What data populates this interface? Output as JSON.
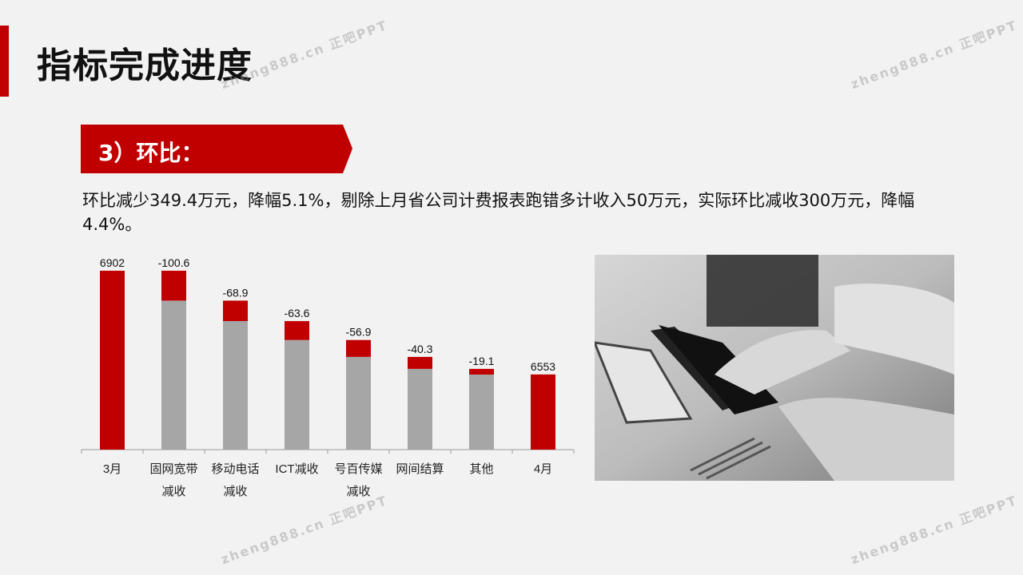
{
  "title": "指标完成进度",
  "section_label": "3）环比：",
  "description": "环比减少349.4万元，降幅5.1%，剔除上月省公司计费报表跑错多计收入50万元，实际环比减收300万元，降幅4.4%。",
  "watermark": "zheng888.cn 正吧PPT",
  "colors": {
    "accent": "#c00000",
    "base": "#a6a6a6",
    "background": "#f2f2f2"
  },
  "chart_data": {
    "type": "bar",
    "subtype": "waterfall",
    "categories": [
      "3月",
      "固网宽带\n减收",
      "移动电话\n减收",
      "ICT减收",
      "号百传媒\n减收",
      "网间结算",
      "其他",
      "4月"
    ],
    "values": [
      6902,
      -100.6,
      -68.9,
      -63.6,
      -56.9,
      -40.3,
      -19.1,
      6553
    ],
    "data_labels": [
      "6902",
      "-100.6",
      "-68.9",
      "-63.6",
      "-56.9",
      "-40.3",
      "-19.1",
      "6553"
    ],
    "ylim": [
      6300,
      6960
    ],
    "grid": false,
    "legend": "none"
  }
}
